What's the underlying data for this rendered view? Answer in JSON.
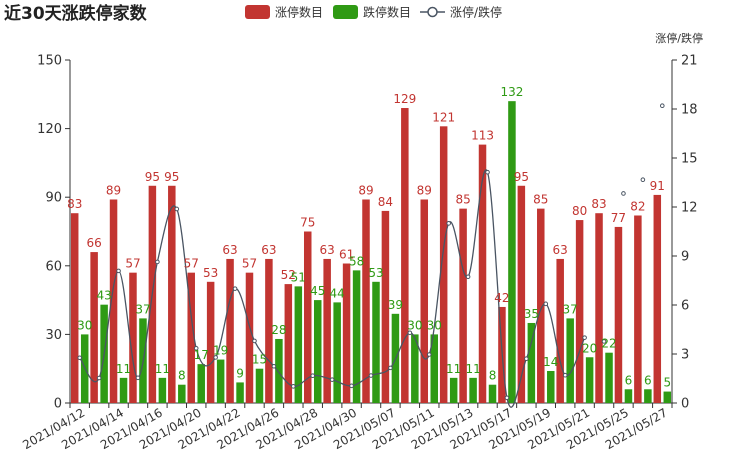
{
  "chart_data": {
    "type": "bar",
    "title": "近30天涨跌停家数",
    "legend": {
      "placement": "top-center",
      "items": [
        {
          "name": "涨停数目",
          "color": "#c23531",
          "shape": "rect"
        },
        {
          "name": "跌停数目",
          "color": "#2f9a14",
          "shape": "rect"
        },
        {
          "name": "涨停/跌停",
          "color": "#4a5563",
          "shape": "line-circle"
        }
      ]
    },
    "categories": [
      "2021/04/12",
      "2021/04/13",
      "2021/04/14",
      "2021/04/15",
      "2021/04/16",
      "2021/04/19",
      "2021/04/20",
      "2021/04/21",
      "2021/04/22",
      "2021/04/23",
      "2021/04/26",
      "2021/04/27",
      "2021/04/28",
      "2021/04/29",
      "2021/04/30",
      "2021/05/06",
      "2021/05/07",
      "2021/05/10",
      "2021/05/11",
      "2021/05/12",
      "2021/05/13",
      "2021/05/14",
      "2021/05/17",
      "2021/05/18",
      "2021/05/19",
      "2021/05/20",
      "2021/05/21",
      "2021/05/24",
      "2021/05/25",
      "2021/05/26",
      "2021/05/27"
    ],
    "x_tick_labels": [
      "2021/04/12",
      "2021/04/14",
      "2021/04/16",
      "2021/04/20",
      "2021/04/22",
      "2021/04/26",
      "2021/04/28",
      "2021/04/30",
      "2021/05/07",
      "2021/05/11",
      "2021/05/13",
      "2021/05/17",
      "2021/05/19",
      "2021/05/21",
      "2021/05/25",
      "2021/05/27"
    ],
    "series": [
      {
        "name": "涨停数目",
        "axis": "left",
        "kind": "bar",
        "color": "#c23531",
        "values": [
          83,
          66,
          89,
          57,
          95,
          95,
          57,
          53,
          63,
          57,
          63,
          52,
          75,
          63,
          61,
          89,
          84,
          129,
          89,
          121,
          85,
          113,
          42,
          95,
          85,
          63,
          80,
          83,
          77,
          82,
          91
        ]
      },
      {
        "name": "跌停数目",
        "axis": "left",
        "kind": "bar",
        "color": "#2f9a14",
        "values": [
          30,
          43,
          11,
          37,
          11,
          8,
          17,
          19,
          9,
          15,
          28,
          51,
          45,
          44,
          58,
          53,
          39,
          30,
          30,
          11,
          11,
          8,
          132,
          35,
          14,
          37,
          20,
          22,
          6,
          6,
          5
        ]
      },
      {
        "name": "涨停/跌停",
        "axis": "right",
        "kind": "smooth-line",
        "color": "#4a5563",
        "values": [
          2.77,
          1.53,
          8.09,
          1.54,
          8.64,
          11.88,
          3.35,
          2.79,
          7.0,
          3.8,
          2.25,
          1.02,
          1.67,
          1.43,
          1.05,
          1.68,
          2.15,
          4.3,
          2.97,
          11.0,
          7.73,
          14.13,
          0.32,
          2.71,
          6.07,
          1.7,
          4.0,
          3.77,
          12.83,
          13.67,
          18.2
        ]
      }
    ],
    "y_left": {
      "min": 0,
      "max": 150,
      "ticks": [
        0,
        30,
        60,
        90,
        120,
        150
      ]
    },
    "y_right": {
      "min": 0,
      "max": 21,
      "ticks": [
        0,
        3,
        6,
        9,
        12,
        15,
        18,
        21
      ],
      "label": "涨停/跌停"
    },
    "grid": false
  }
}
